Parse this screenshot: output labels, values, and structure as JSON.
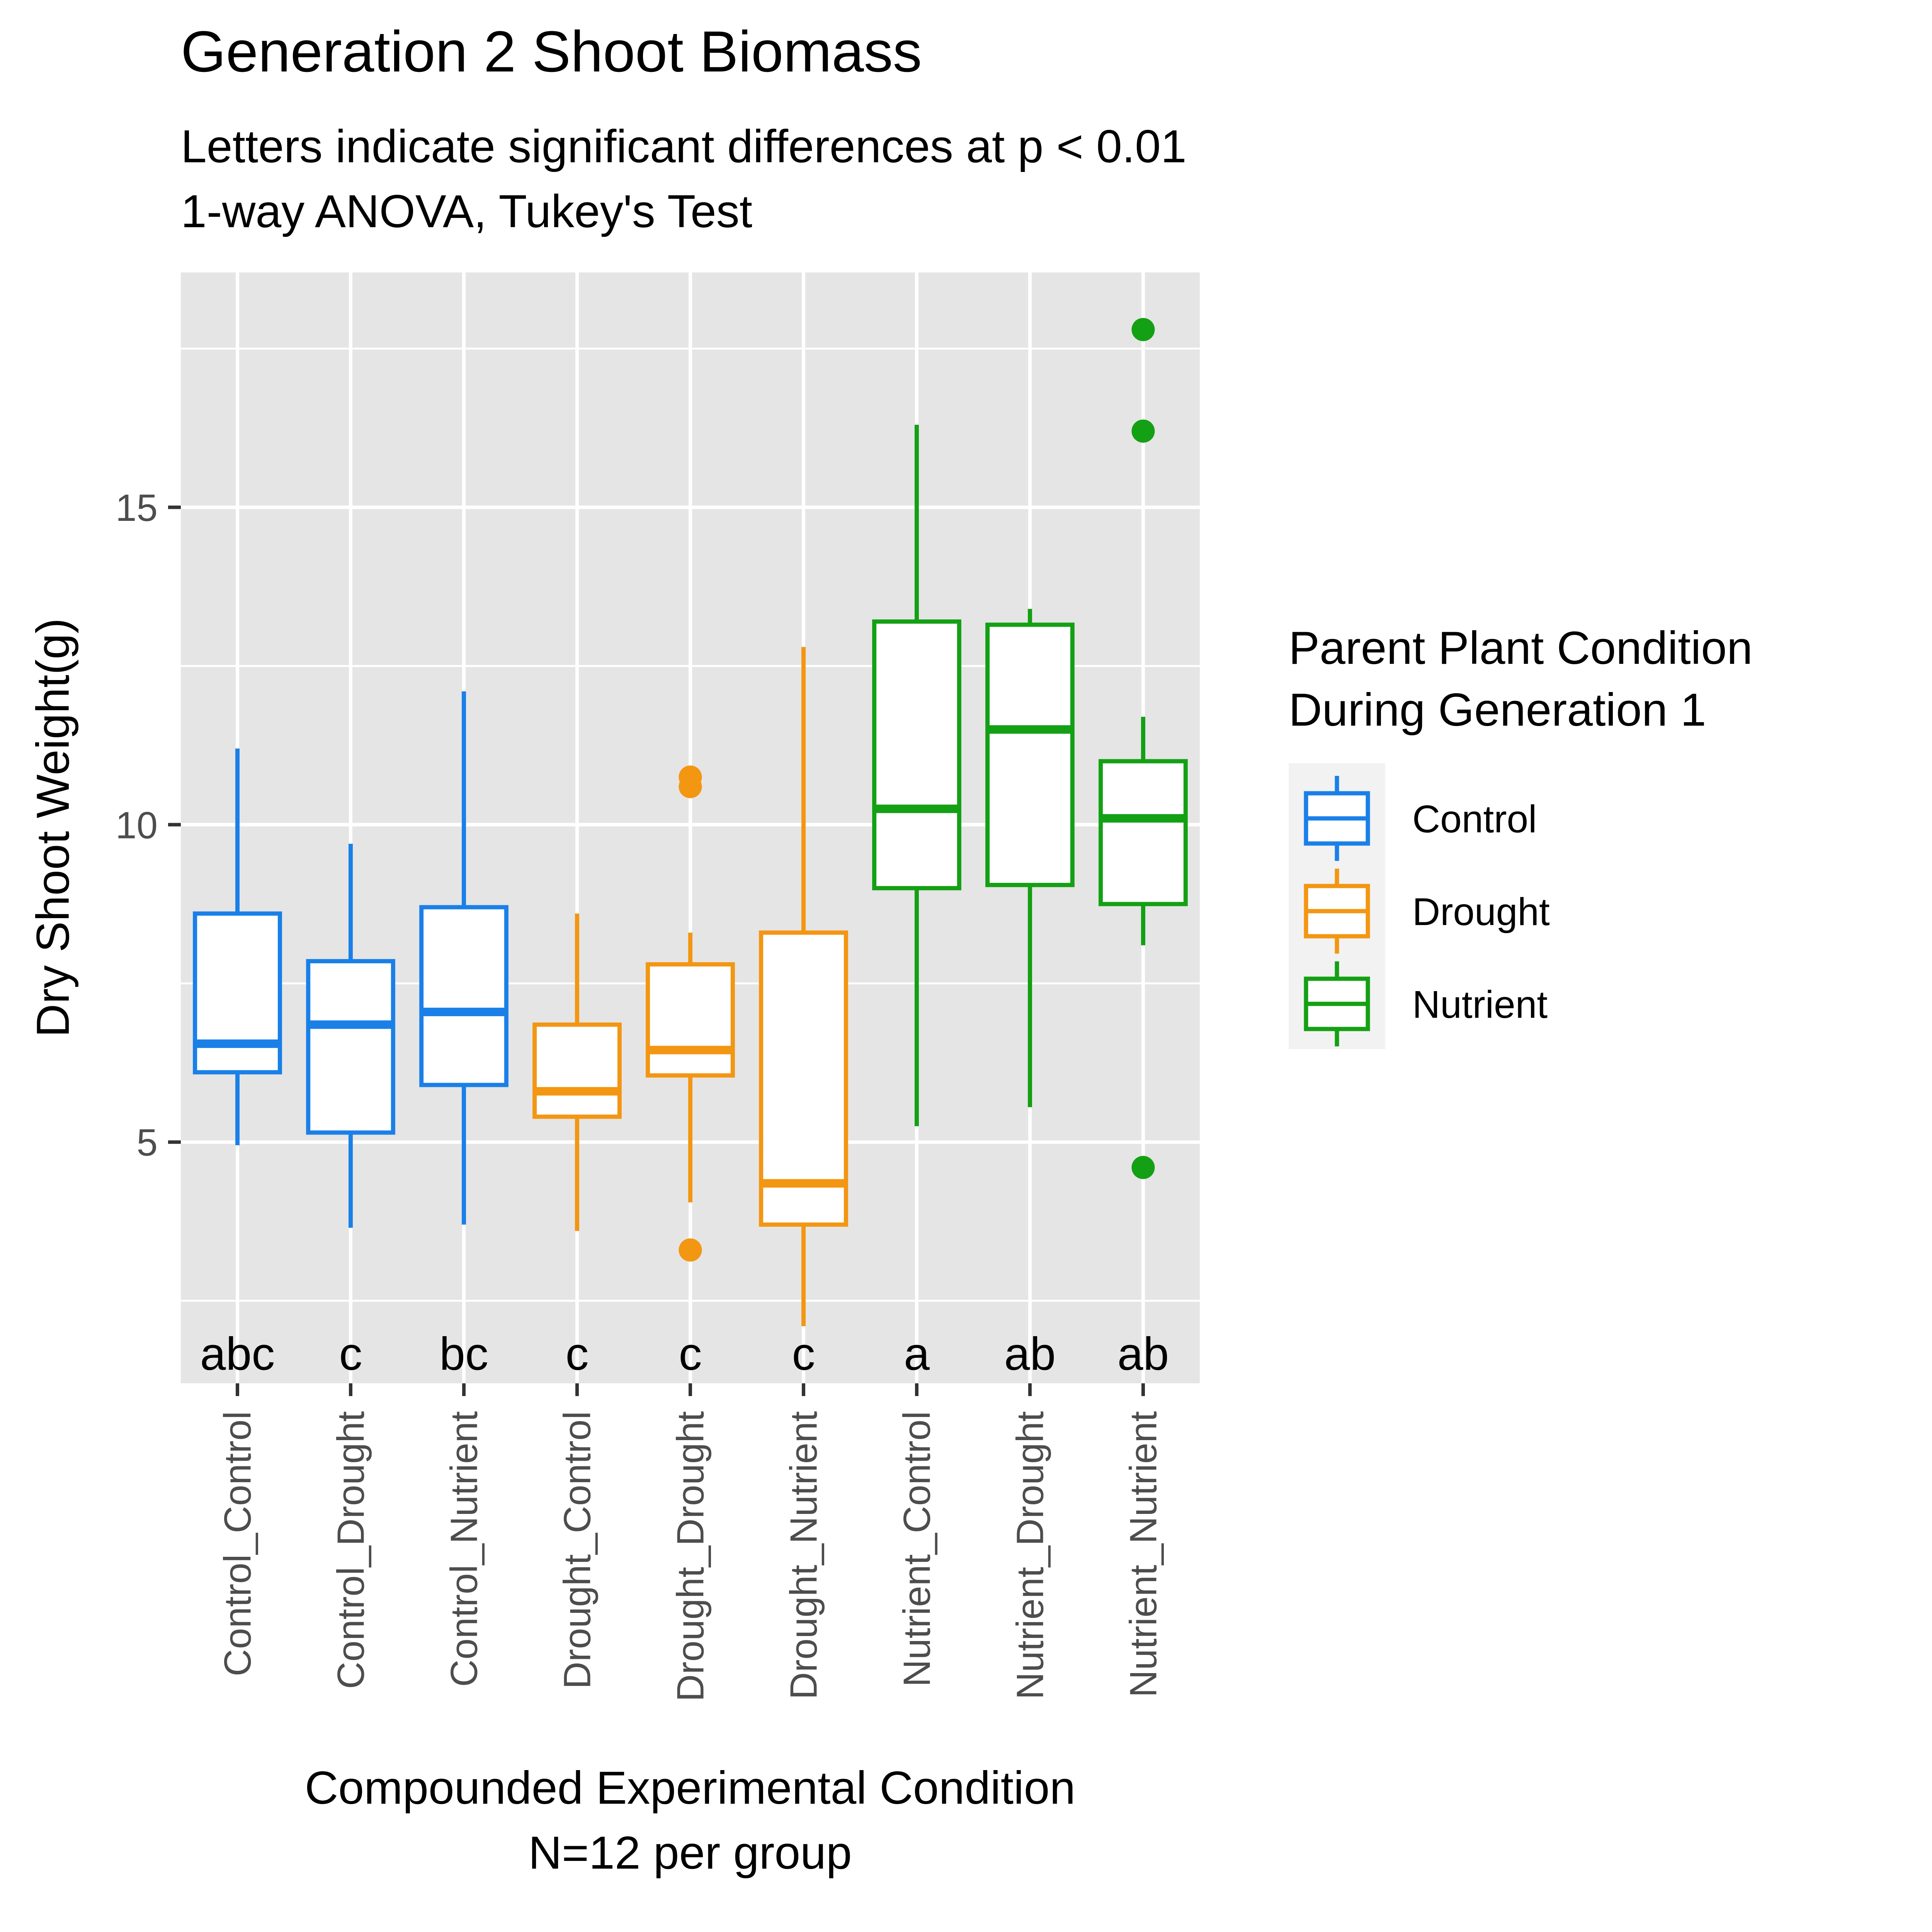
{
  "chart_data": {
    "type": "boxplot",
    "title": "Generation 2 Shoot Biomass",
    "subtitle_lines": [
      "Letters indicate significant differences at p < 0.01",
      "1-way ANOVA, Tukey's Test"
    ],
    "xlabel_lines": [
      "Compounded Experimental Condition",
      "N=12 per group"
    ],
    "ylabel": "Dry Shoot Weight(g)",
    "ylim": [
      1.2,
      18.7
    ],
    "y_ticks": [
      5,
      10,
      15
    ],
    "y_minor_gridlines": [
      2.5,
      7.5,
      12.5,
      17.5
    ],
    "grid": true,
    "legend": {
      "title_lines": [
        "Parent Plant Condition",
        "During Generation 1"
      ],
      "position": "right",
      "entries": [
        {
          "label": "Control",
          "color": "#1a80e8"
        },
        {
          "label": "Drought",
          "color": "#f39612"
        },
        {
          "label": "Nutrient",
          "color": "#14a014"
        }
      ]
    },
    "colors": {
      "Control": "#1a80e8",
      "Drought": "#f39612",
      "Nutrient": "#14a014",
      "panel_bg": "#e5e5e5",
      "grid": "#ffffff"
    },
    "categories": [
      "Control_Control",
      "Control_Drought",
      "Control_Nutrient",
      "Drought_Control",
      "Drought_Drought",
      "Drought_Nutrient",
      "Nutrient_Control",
      "Nutrient_Drought",
      "Nutrient_Nutrient"
    ],
    "boxes": [
      {
        "category": "Control_Control",
        "group": "Control",
        "min": 4.95,
        "q1": 6.1,
        "median": 6.55,
        "q3": 8.6,
        "max": 11.2,
        "outliers": [],
        "letter": "abc"
      },
      {
        "category": "Control_Drought",
        "group": "Control",
        "min": 3.65,
        "q1": 5.15,
        "median": 6.85,
        "q3": 7.85,
        "max": 9.7,
        "outliers": [],
        "letter": "c"
      },
      {
        "category": "Control_Nutrient",
        "group": "Control",
        "min": 3.7,
        "q1": 5.9,
        "median": 7.05,
        "q3": 8.7,
        "max": 12.1,
        "outliers": [],
        "letter": "bc"
      },
      {
        "category": "Drought_Control",
        "group": "Drought",
        "min": 3.6,
        "q1": 5.4,
        "median": 5.8,
        "q3": 6.85,
        "max": 8.6,
        "outliers": [],
        "letter": "c"
      },
      {
        "category": "Drought_Drought",
        "group": "Drought",
        "min": 4.05,
        "q1": 6.05,
        "median": 6.45,
        "q3": 7.8,
        "max": 8.3,
        "outliers": [
          10.75,
          10.6,
          3.3
        ],
        "letter": "c"
      },
      {
        "category": "Drought_Nutrient",
        "group": "Drought",
        "min": 2.1,
        "q1": 3.7,
        "median": 4.35,
        "q3": 8.3,
        "max": 12.8,
        "outliers": [],
        "letter": "c"
      },
      {
        "category": "Nutrient_Control",
        "group": "Nutrient",
        "min": 5.25,
        "q1": 9.0,
        "median": 10.25,
        "q3": 13.2,
        "max": 16.3,
        "outliers": [],
        "letter": "a"
      },
      {
        "category": "Nutrient_Drought",
        "group": "Nutrient",
        "min": 5.55,
        "q1": 9.05,
        "median": 11.5,
        "q3": 13.15,
        "max": 13.4,
        "outliers": [],
        "letter": "ab"
      },
      {
        "category": "Nutrient_Nutrient",
        "group": "Nutrient",
        "min": 8.1,
        "q1": 8.75,
        "median": 10.1,
        "q3": 11.0,
        "max": 11.7,
        "outliers": [
          17.8,
          16.2,
          4.6
        ],
        "letter": "ab"
      }
    ]
  }
}
